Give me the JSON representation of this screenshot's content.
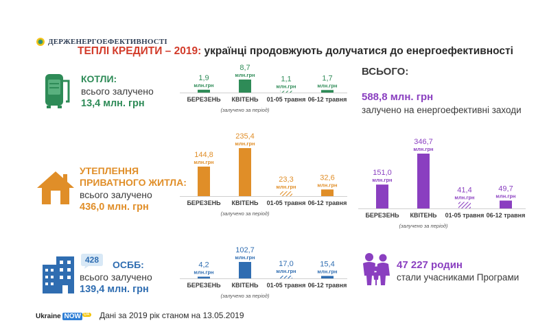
{
  "header": {
    "org_name": "ДЕРЖЕНЕРГОЕФЕКТИВНОСТІ",
    "title_accent": "ТЕПЛІ КРЕДИТИ – 2019:",
    "title_rest": " українці продовжують долучатися до енергоефективності"
  },
  "colors": {
    "green": "#2e8b57",
    "orange": "#e08e28",
    "blue": "#2f6db1",
    "purple": "#8a3fc0",
    "title_accent": "#d23b2a"
  },
  "sections": {
    "boilers": {
      "title": "КОТЛИ:",
      "subtitle": "всього залучено",
      "amount": "13,4 млн. грн",
      "icon": "boiler-icon"
    },
    "insulation": {
      "title_line1": "УТЕПЛЕННЯ",
      "title_line2": "ПРИВАТНОГО ЖИТЛА:",
      "subtitle": "всього залучено",
      "amount": "436,0 млн. грн",
      "icon": "house-icon"
    },
    "osbb": {
      "badge": "428",
      "title": "ОСББ:",
      "subtitle": "всього залучено",
      "amount": "139,4 млн. грн",
      "icon": "apartment-buildings-icon"
    }
  },
  "totals": {
    "heading": "ВСЬОГО:",
    "amount": "588,8 млн. грн",
    "subtitle": "залучено на енергоефективні заходи"
  },
  "families": {
    "count": "47 227 родин",
    "subtitle": "стали учасниками Програми",
    "icon": "family-icon"
  },
  "footer": {
    "brand_ukraine": "Ukraine",
    "brand_now": "NOW",
    "brand_ua": "UA",
    "note": "Дані за 2019 рік станом на 13.05.2019"
  },
  "chart_data": [
    {
      "type": "bar",
      "id": "boilers",
      "categories": [
        "БЕРЕЗЕНЬ",
        "КВІТЕНЬ",
        "01-05 травня",
        "06-12 травня"
      ],
      "values": [
        1.9,
        8.7,
        1.1,
        1.7
      ],
      "labels": [
        "1,9",
        "8,7",
        "1,1",
        "1,7"
      ],
      "unit": "млн.грн",
      "hatched": [
        false,
        false,
        true,
        false
      ],
      "note": "(залучено за період)",
      "color": "#2e8b57"
    },
    {
      "type": "bar",
      "id": "insulation",
      "categories": [
        "БЕРЕЗЕНЬ",
        "КВІТЕНЬ",
        "01-05 травня",
        "06-12 травня"
      ],
      "values": [
        144.8,
        235.4,
        23.3,
        32.6
      ],
      "labels": [
        "144,8",
        "235,4",
        "23,3",
        "32,6"
      ],
      "unit": "млн.грн",
      "hatched": [
        false,
        false,
        true,
        false
      ],
      "note": "(залучено за період)",
      "color": "#e08e28"
    },
    {
      "type": "bar",
      "id": "osbb",
      "categories": [
        "БЕРЕЗЕНЬ",
        "КВІТЕНЬ",
        "01-05 травня",
        "06-12 травня"
      ],
      "values": [
        4.2,
        102.7,
        17.0,
        15.4
      ],
      "labels": [
        "4,2",
        "102,7",
        "17,0",
        "15,4"
      ],
      "unit": "млн.грн",
      "hatched": [
        false,
        false,
        true,
        false
      ],
      "note": "(залучено за період)",
      "color": "#2f6db1"
    },
    {
      "type": "bar",
      "id": "total",
      "categories": [
        "БЕРЕЗЕНЬ",
        "КВІТЕНЬ",
        "01-05 травня",
        "06-12 травня"
      ],
      "values": [
        151.0,
        346.7,
        41.4,
        49.7
      ],
      "labels": [
        "151,0",
        "346,7",
        "41,4",
        "49,7"
      ],
      "unit": "млн.грн",
      "hatched": [
        false,
        false,
        true,
        false
      ],
      "note": "(залучено за період)",
      "color": "#8a3fc0"
    }
  ]
}
